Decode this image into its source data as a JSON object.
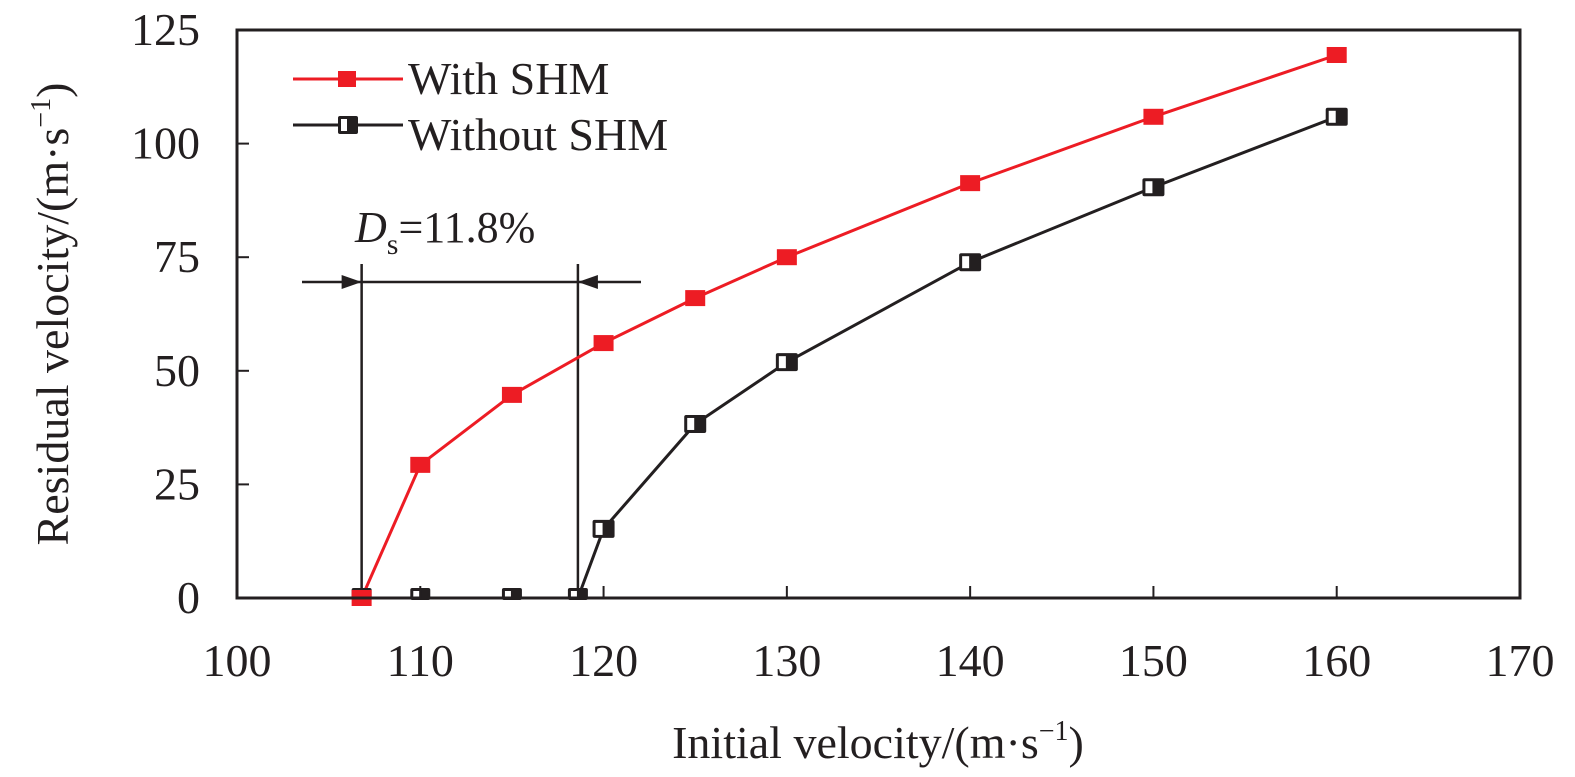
{
  "chart_data": {
    "type": "line",
    "title": "",
    "xlabel": "Initial velocity/(m·s",
    "xlabel_sup": "−1",
    "xlabel_end": ")",
    "ylabel": "Residual velocity/(m·s",
    "ylabel_sup": "−1",
    "ylabel_end": ")",
    "xlim": [
      100,
      170
    ],
    "ylim": [
      0,
      125
    ],
    "xticks": [
      100,
      110,
      120,
      130,
      140,
      150,
      160,
      170
    ],
    "yticks": [
      0,
      25,
      50,
      75,
      100,
      125
    ],
    "xtick_labels": [
      "100",
      "110",
      "120",
      "130",
      "140",
      "150",
      "160",
      "170"
    ],
    "ytick_labels": [
      "0",
      "25",
      "50",
      "75",
      "100",
      "125"
    ],
    "grid": false,
    "legend_position": "top-left",
    "series": [
      {
        "name": "With SHM",
        "color": "#ed1c24",
        "marker": "filled-square",
        "x": [
          106.8,
          110,
          115,
          120,
          125,
          130,
          140,
          150,
          160
        ],
        "y": [
          0,
          29.3,
          44.7,
          56.1,
          66.0,
          75.0,
          91.3,
          105.9,
          119.5
        ]
      },
      {
        "name": "Without SHM",
        "color": "#231f20",
        "marker": "half-filled-square",
        "x": [
          106.8,
          110,
          115,
          118.6,
          120,
          125,
          130,
          140,
          150,
          160
        ],
        "y": [
          0,
          0,
          0,
          0,
          15.2,
          38.3,
          51.9,
          73.9,
          90.4,
          105.9
        ]
      }
    ],
    "annotation": {
      "label_main": "D",
      "label_sub": "s",
      "label_value": "=11.8%",
      "x_start": 106.8,
      "x_end": 118.6,
      "y_level": 70,
      "color": "#231f20"
    }
  }
}
